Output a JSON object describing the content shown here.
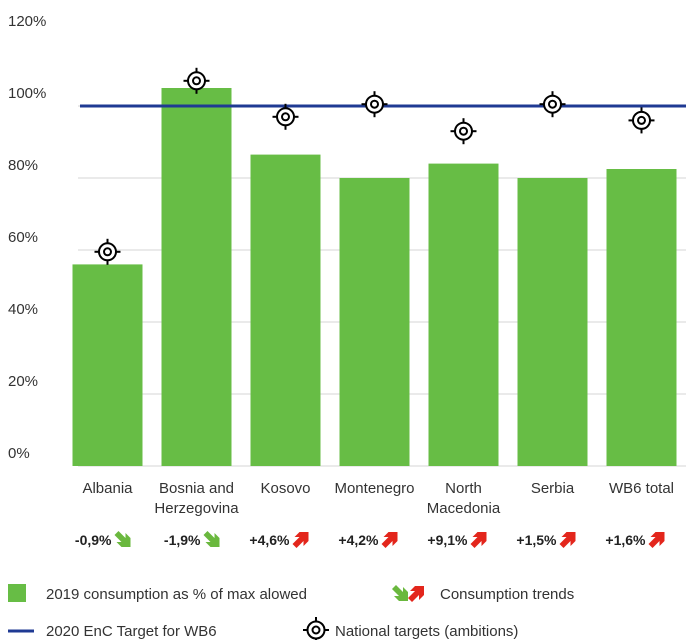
{
  "chart_data": {
    "type": "bar",
    "categories": [
      "Albania",
      "Bosnia and\nHerzegovina",
      "Kosovo",
      "Montenegro",
      "North\nMacedonia",
      "Serbia",
      "WB6 total"
    ],
    "series": [
      {
        "name": "2019 consumption as % of max alowed",
        "color": "#67bd45",
        "values": [
          56,
          105,
          86.5,
          80,
          84,
          80,
          82.5
        ]
      },
      {
        "name": "National targets (ambitions)",
        "color": "#000000",
        "values": [
          59.5,
          107,
          97,
          100.5,
          93,
          100.5,
          96
        ]
      }
    ],
    "target_line": {
      "name": "2020 EnC Target for WB6",
      "color": "#1f3a93",
      "value": 100
    },
    "trends": {
      "name": "Consumption trends",
      "values": [
        -0.9,
        -1.9,
        4.6,
        4.2,
        9.1,
        1.5,
        1.6
      ],
      "value_labels": [
        "-0,9%",
        "-1,9%",
        "+4,6%",
        "+4,2%",
        "+9,1%",
        "+1,5%",
        "+1,6%"
      ],
      "colors": {
        "down": "#6ab83e",
        "up": "#e3261c"
      }
    },
    "ylim": [
      0,
      120
    ],
    "yticks": [
      {
        "value": 0,
        "label": "0%"
      },
      {
        "value": 20,
        "label": "20%"
      },
      {
        "value": 40,
        "label": "40%"
      },
      {
        "value": 60,
        "label": "60%"
      },
      {
        "value": 80,
        "label": "80%"
      },
      {
        "value": 100,
        "label": "100%"
      },
      {
        "value": 120,
        "label": "120%"
      }
    ],
    "grid": true
  }
}
